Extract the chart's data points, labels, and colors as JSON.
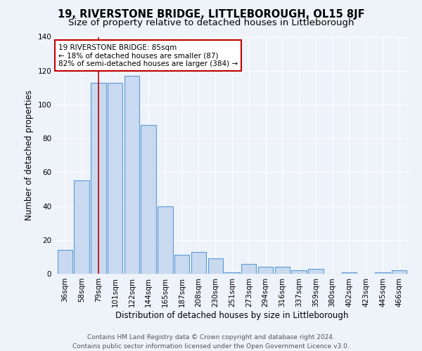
{
  "title": "19, RIVERSTONE BRIDGE, LITTLEBOROUGH, OL15 8JF",
  "subtitle": "Size of property relative to detached houses in Littleborough",
  "xlabel": "Distribution of detached houses by size in Littleborough",
  "ylabel": "Number of detached properties",
  "categories": [
    "36sqm",
    "58sqm",
    "79sqm",
    "101sqm",
    "122sqm",
    "144sqm",
    "165sqm",
    "187sqm",
    "208sqm",
    "230sqm",
    "251sqm",
    "273sqm",
    "294sqm",
    "316sqm",
    "337sqm",
    "359sqm",
    "380sqm",
    "402sqm",
    "423sqm",
    "445sqm",
    "466sqm"
  ],
  "values": [
    14,
    55,
    113,
    113,
    117,
    88,
    40,
    11,
    13,
    9,
    1,
    6,
    4,
    4,
    2,
    3,
    0,
    1,
    0,
    1,
    2
  ],
  "bar_color": "#c9d9f0",
  "bar_edge_color": "#5b9bd5",
  "vline_x_index": 2,
  "vline_color": "#c00000",
  "annotation_text": "19 RIVERSTONE BRIDGE: 85sqm\n← 18% of detached houses are smaller (87)\n82% of semi-detached houses are larger (384) →",
  "annotation_box_color": "#ffffff",
  "annotation_box_edge": "#c00000",
  "ylim": [
    0,
    140
  ],
  "yticks": [
    0,
    20,
    40,
    60,
    80,
    100,
    120,
    140
  ],
  "footer": "Contains HM Land Registry data © Crown copyright and database right 2024.\nContains public sector information licensed under the Open Government Licence v3.0.",
  "bg_color": "#eef2f9",
  "grid_color": "#ffffff",
  "title_fontsize": 10.5,
  "subtitle_fontsize": 9.5,
  "label_fontsize": 8.5,
  "tick_fontsize": 7.5,
  "footer_fontsize": 6.5,
  "annot_fontsize": 7.5
}
